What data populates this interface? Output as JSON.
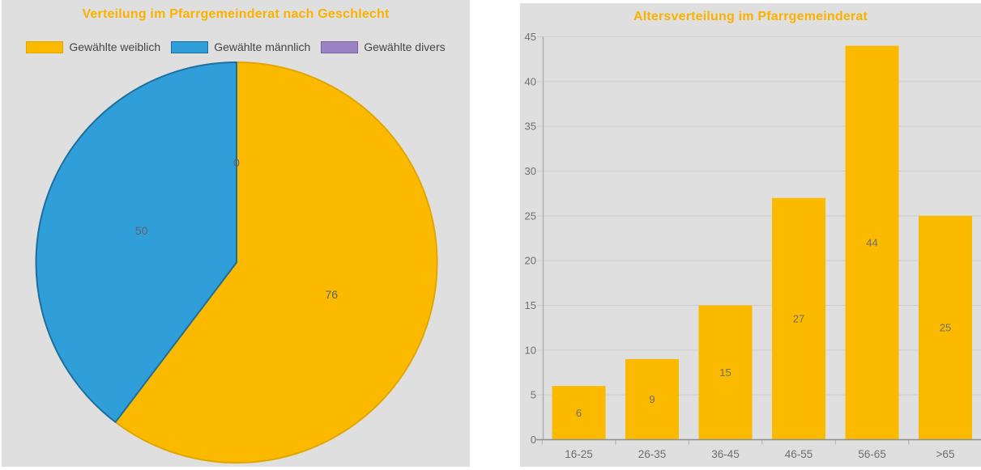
{
  "colors": {
    "title": "#f9b200",
    "panel_bg": "#dfdfdf",
    "grid": "#cdcdcd",
    "axis_line": "#8e8e8e",
    "y_axis_line": "#b0b0b0",
    "tick_text": "#6e6e6e",
    "value_label_text": "#6d6d6d",
    "pie_label_text": "#5d646e",
    "legend_text": "#454545"
  },
  "chart_data": [
    {
      "type": "pie",
      "title": "Verteilung im Pfarrgemeinderat nach Geschlecht",
      "legend_position": "top",
      "start_angle": "12-oclock",
      "direction": "clockwise",
      "series": [
        {
          "name": "Gewählte weiblich",
          "value": 76,
          "color": "#fbba00",
          "border_color": "#e2a600"
        },
        {
          "name": "Gewählte männlich",
          "value": 50,
          "color": "#2f9ed9",
          "border_color": "#1e6f9e"
        },
        {
          "name": "Gewählte divers",
          "value": 0,
          "color": "#9b83c3",
          "border_color": "#7d5fa6"
        }
      ]
    },
    {
      "type": "bar",
      "title": "Altersverteilung im Pfarrgemeinderat",
      "categories": [
        "16-25",
        "26-35",
        "36-45",
        "46-55",
        "56-65",
        ">65"
      ],
      "values": [
        6,
        9,
        15,
        27,
        44,
        25
      ],
      "ylim": [
        0,
        45
      ],
      "ytick_step": 5,
      "grid": true,
      "legend_position": "none",
      "bar_color": "#fbba00"
    }
  ]
}
